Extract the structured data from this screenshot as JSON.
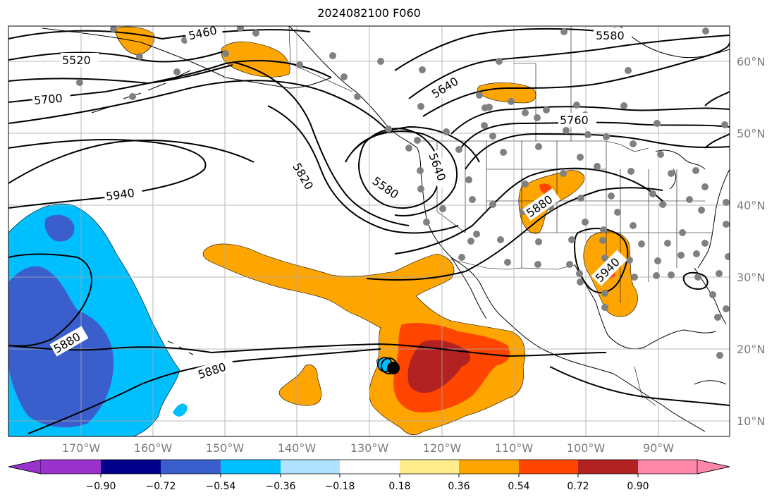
{
  "title": "2024082100 F060",
  "latitude_labels": [
    "60°N",
    "50°N",
    "40°N",
    "30°N",
    "20°N",
    "10°N"
  ],
  "longitude_labels": [
    "170°W",
    "160°W",
    "150°W",
    "140°W",
    "130°W",
    "120°W",
    "110°W",
    "100°W",
    "90°W"
  ],
  "contour_labels": [
    "5460",
    "5520",
    "5580",
    "5700",
    "5640",
    "5760",
    "5580",
    "5640",
    "5820",
    "5940",
    "5880",
    "5880",
    "5880",
    "5940"
  ],
  "colorbar": {
    "tick_labels": [
      "−0.90",
      "−0.72",
      "−0.54",
      "−0.36",
      "−0.18",
      "0.18",
      "0.36",
      "0.54",
      "0.72",
      "0.90"
    ],
    "colors": [
      "#9932cc",
      "#00008b",
      "#3a5fcd",
      "#00bfff",
      "#b0e2ff",
      "#ffffff",
      "#ffec8b",
      "#ffa500",
      "#ff4500",
      "#b22222",
      "#ff88aa"
    ]
  },
  "colors": {
    "blue_anomaly": "#00bfff",
    "deep_blue_anomaly": "#3a5fcd",
    "orange_anomaly": "#ffa500",
    "red_anomaly": "#ff4500",
    "dark_red_anomaly": "#b22222",
    "station_dot": "#808080"
  }
}
